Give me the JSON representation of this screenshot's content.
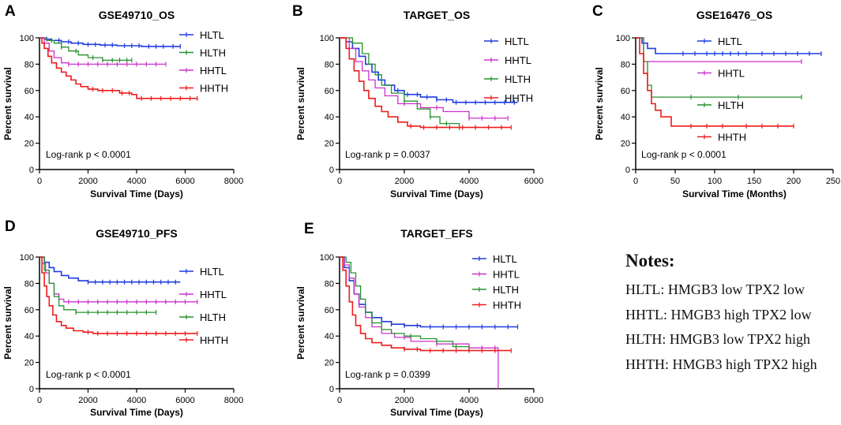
{
  "chart_data": [
    {
      "type": "line",
      "panel_letter": "A",
      "title": "GSE49710_OS",
      "xlabel": "Survival Time (Days)",
      "ylabel": "Percent survival",
      "xlim": [
        0,
        8000
      ],
      "ylim": [
        0,
        100
      ],
      "xticks": [
        0,
        2000,
        4000,
        6000,
        8000
      ],
      "yticks": [
        0,
        20,
        40,
        60,
        80,
        100
      ],
      "annotation": "Log-rank p < 0.0001",
      "legend_order": [
        "HLTL",
        "HLTH",
        "HHTL",
        "HHTH"
      ],
      "series": [
        {
          "name": "HLTL",
          "color": "#1f3de0",
          "x": [
            0,
            200,
            500,
            900,
            1300,
            1800,
            2500,
            3200,
            4200,
            5800
          ],
          "y": [
            100,
            99,
            98,
            97,
            96,
            95,
            94.5,
            94,
            93.5,
            93.5
          ],
          "censor_x": [
            300,
            800,
            1200,
            1600,
            2000,
            2300,
            2700,
            3000,
            3500,
            3800,
            4100,
            4500,
            4800,
            5100,
            5500,
            5800
          ]
        },
        {
          "name": "HLTH",
          "color": "#27922f",
          "x": [
            0,
            300,
            600,
            900,
            1200,
            1600,
            2000,
            2600,
            3800
          ],
          "y": [
            100,
            98,
            96,
            93,
            90,
            87,
            85,
            83,
            83
          ],
          "censor_x": [
            500,
            900,
            1500,
            2200,
            2600,
            3000,
            3300,
            3600,
            3800
          ]
        },
        {
          "name": "HHTL",
          "color": "#cc33cc",
          "x": [
            0,
            200,
            400,
            600,
            900,
            1200,
            2000,
            3000,
            4000,
            5200
          ],
          "y": [
            100,
            96,
            90,
            85,
            81,
            80,
            80,
            80,
            80,
            80
          ],
          "censor_x": [
            1200,
            1600,
            2000,
            2400,
            2800,
            3200,
            3600,
            4000,
            4400,
            4800,
            5200
          ]
        },
        {
          "name": "HHTH",
          "color": "#ee1c1c",
          "x": [
            0,
            100,
            200,
            350,
            500,
            700,
            900,
            1100,
            1300,
            1500,
            1700,
            2000,
            2400,
            2800,
            3300,
            3800,
            4000,
            6500
          ],
          "y": [
            100,
            96,
            92,
            86,
            81,
            77,
            74,
            71,
            68,
            65,
            63,
            61,
            60,
            60,
            58,
            57,
            54,
            54
          ],
          "censor_x": [
            2200,
            2600,
            3000,
            3400,
            3700,
            4200,
            4600,
            5000,
            5400,
            5800,
            6200,
            6500
          ]
        }
      ]
    },
    {
      "type": "line",
      "panel_letter": "B",
      "title": "TARGET_OS",
      "xlabel": "Survival Time (Days)",
      "ylabel": "Percent survival",
      "xlim": [
        0,
        6000
      ],
      "ylim": [
        0,
        100
      ],
      "xticks": [
        0,
        2000,
        4000,
        6000
      ],
      "yticks": [
        0,
        20,
        40,
        60,
        80,
        100
      ],
      "annotation": "Log-rank p = 0.0037",
      "legend_order": [
        "HLTL",
        "HHTL",
        "HLTH",
        "HHTH"
      ],
      "series": [
        {
          "name": "HLTL",
          "color": "#1f3de0",
          "x": [
            0,
            200,
            400,
            600,
            800,
            1000,
            1200,
            1400,
            1700,
            2000,
            2500,
            3000,
            3500,
            5500
          ],
          "y": [
            100,
            97,
            92,
            86,
            80,
            74,
            68,
            64,
            60,
            57,
            55,
            53,
            51,
            51
          ],
          "censor_x": [
            1800,
            2100,
            2400,
            2700,
            3000,
            3300,
            3600,
            3900,
            4200,
            4500,
            4800,
            5100,
            5400
          ]
        },
        {
          "name": "HHTL",
          "color": "#cc33cc",
          "x": [
            0,
            300,
            500,
            700,
            900,
            1100,
            1400,
            1800,
            2500,
            3200,
            4000,
            5200
          ],
          "y": [
            100,
            92,
            82,
            75,
            68,
            62,
            56,
            50,
            47,
            44,
            39,
            39
          ],
          "censor_x": [
            2000,
            3000,
            4000,
            4400,
            4800,
            5200
          ]
        },
        {
          "name": "HLTH",
          "color": "#27922f",
          "x": [
            0,
            400,
            700,
            900,
            1100,
            1300,
            1600,
            2000,
            2400,
            2800,
            3100,
            3700
          ],
          "y": [
            100,
            96,
            88,
            80,
            72,
            64,
            58,
            52,
            46,
            40,
            35,
            30
          ],
          "censor_x": [
            2000,
            2800,
            3300
          ]
        },
        {
          "name": "HHTH",
          "color": "#ee1c1c",
          "x": [
            0,
            200,
            300,
            450,
            600,
            750,
            900,
            1100,
            1300,
            1500,
            1800,
            2100,
            2500,
            5300
          ],
          "y": [
            100,
            92,
            84,
            75,
            67,
            60,
            54,
            48,
            44,
            40,
            36,
            33,
            32,
            32
          ],
          "censor_x": [
            2200,
            2600,
            3000,
            3400,
            3800,
            4200,
            4600,
            5000,
            5300
          ]
        }
      ]
    },
    {
      "type": "line",
      "panel_letter": "C",
      "title": "GSE16476_OS",
      "xlabel": "Survival Time (Months)",
      "ylabel": "Percent survival",
      "xlim": [
        0,
        250
      ],
      "ylim": [
        0,
        100
      ],
      "xticks": [
        0,
        50,
        100,
        150,
        200,
        250
      ],
      "yticks": [
        0,
        20,
        40,
        60,
        80,
        100
      ],
      "annotation": "Log-rank p < 0.0001",
      "legend_order": [
        "HLTL",
        "HHTL",
        "HLTH",
        "HHTH"
      ],
      "series": [
        {
          "name": "HLTL",
          "color": "#1f3de0",
          "x": [
            0,
            8,
            15,
            25,
            235
          ],
          "y": [
            100,
            96,
            92,
            88,
            88
          ],
          "censor_x": [
            60,
            75,
            90,
            100,
            110,
            120,
            130,
            140,
            160,
            175,
            190,
            205,
            220,
            235
          ]
        },
        {
          "name": "HHTL",
          "color": "#cc33cc",
          "x": [
            0,
            10,
            210
          ],
          "y": [
            100,
            82,
            82
          ],
          "censor_x": [
            210
          ]
        },
        {
          "name": "HLTH",
          "color": "#27922f",
          "x": [
            0,
            10,
            15,
            20,
            210
          ],
          "y": [
            100,
            82,
            64,
            55,
            55
          ],
          "censor_x": [
            70,
            130,
            210
          ]
        },
        {
          "name": "HHTH",
          "color": "#ee1c1c",
          "x": [
            0,
            5,
            10,
            15,
            20,
            25,
            32,
            45,
            200
          ],
          "y": [
            100,
            88,
            73,
            60,
            50,
            45,
            40,
            33,
            33
          ],
          "censor_x": [
            70,
            90,
            110,
            140,
            160,
            180,
            200
          ]
        }
      ]
    },
    {
      "type": "line",
      "panel_letter": "D",
      "title": "GSE49710_PFS",
      "xlabel": "Survival Time (Days)",
      "ylabel": "Percent survival",
      "xlim": [
        0,
        8000
      ],
      "ylim": [
        0,
        100
      ],
      "xticks": [
        0,
        2000,
        4000,
        6000,
        8000
      ],
      "yticks": [
        0,
        20,
        40,
        60,
        80,
        100
      ],
      "annotation": "Log-rank p < 0.0001",
      "legend_order": [
        "HLTL",
        "HHTL",
        "HLTH",
        "HHTH"
      ],
      "series": [
        {
          "name": "HLTL",
          "color": "#1f3de0",
          "x": [
            0,
            200,
            400,
            600,
            900,
            1200,
            1600,
            2000,
            5800
          ],
          "y": [
            100,
            96,
            92,
            89,
            86,
            84,
            82,
            81,
            81
          ],
          "censor_x": [
            2000,
            2300,
            2600,
            2900,
            3200,
            3500,
            3800,
            4100,
            4400,
            4700,
            5000,
            5300,
            5600
          ]
        },
        {
          "name": "HHTL",
          "color": "#cc33cc",
          "x": [
            0,
            100,
            250,
            400,
            600,
            800,
            1000,
            6500
          ],
          "y": [
            100,
            95,
            88,
            80,
            72,
            68,
            66,
            66
          ],
          "censor_x": [
            1200,
            1600,
            2000,
            2400,
            2800,
            3200,
            3600,
            4000,
            4400,
            4800,
            5200,
            5600,
            6000,
            6500
          ]
        },
        {
          "name": "HLTH",
          "color": "#27922f",
          "x": [
            0,
            200,
            400,
            600,
            800,
            1000,
            1500,
            4800
          ],
          "y": [
            100,
            90,
            80,
            70,
            63,
            60,
            58,
            58
          ],
          "censor_x": [
            1500,
            2000,
            2400,
            2800,
            3200,
            3600,
            4000,
            4400,
            4800
          ]
        },
        {
          "name": "HHTH",
          "color": "#ee1c1c",
          "x": [
            0,
            100,
            200,
            300,
            400,
            550,
            700,
            900,
            1100,
            1400,
            1800,
            2200,
            6500
          ],
          "y": [
            100,
            88,
            78,
            70,
            63,
            56,
            51,
            48,
            46,
            44,
            43,
            42,
            42
          ],
          "censor_x": [
            2000,
            2400,
            2800,
            3200,
            3600,
            4000,
            4400,
            4800,
            5200,
            5600,
            6000,
            6500
          ]
        }
      ]
    },
    {
      "type": "line",
      "panel_letter": "E",
      "title": "TARGET_EFS",
      "xlabel": "Survival Time (Days)",
      "ylabel": "Percent survival",
      "xlim": [
        0,
        6000
      ],
      "ylim": [
        0,
        100
      ],
      "xticks": [
        0,
        2000,
        4000,
        6000
      ],
      "yticks": [
        0,
        20,
        40,
        60,
        80,
        100
      ],
      "annotation": "Log-rank p = 0.0399",
      "legend_order": [
        "HLTL",
        "HHTL",
        "HLTH",
        "HHTH"
      ],
      "series": [
        {
          "name": "HLTL",
          "color": "#1f3de0",
          "x": [
            0,
            150,
            300,
            450,
            600,
            800,
            1000,
            1300,
            1600,
            2000,
            2500,
            3000,
            5500
          ],
          "y": [
            100,
            92,
            82,
            72,
            64,
            58,
            54,
            51,
            49,
            48,
            47,
            47,
            47
          ],
          "censor_x": [
            1600,
            2000,
            2400,
            2800,
            3200,
            3600,
            4000,
            4400,
            4800,
            5200,
            5500
          ]
        },
        {
          "name": "HHTL",
          "color": "#cc33cc",
          "x": [
            0,
            150,
            300,
            450,
            600,
            800,
            1000,
            1300,
            1700,
            2200,
            3000,
            4000,
            4900,
            4900
          ],
          "y": [
            100,
            94,
            84,
            72,
            62,
            54,
            47,
            42,
            39,
            36,
            34,
            31,
            29,
            0
          ],
          "censor_x": [
            2000,
            3000,
            4000,
            4400,
            4800
          ]
        },
        {
          "name": "HLTH",
          "color": "#27922f",
          "x": [
            0,
            200,
            350,
            500,
            650,
            800,
            1000,
            1300,
            1600,
            2000,
            2500,
            3000,
            3500,
            4000
          ],
          "y": [
            100,
            96,
            88,
            78,
            68,
            58,
            50,
            45,
            42,
            40,
            38,
            36,
            32,
            29
          ],
          "censor_x": [
            2200,
            3000,
            3600
          ]
        },
        {
          "name": "HHTH",
          "color": "#ee1c1c",
          "x": [
            0,
            100,
            200,
            300,
            400,
            500,
            650,
            800,
            1000,
            1300,
            1600,
            2000,
            2500,
            5300
          ],
          "y": [
            100,
            90,
            78,
            66,
            56,
            48,
            42,
            38,
            35,
            33,
            31,
            30,
            29,
            29
          ],
          "censor_x": [
            2000,
            2400,
            2800,
            3200,
            3600,
            4000,
            4400,
            4800,
            5300
          ]
        }
      ]
    }
  ],
  "notes": {
    "title": "Notes:",
    "lines": [
      "HLTL: HMGB3 low TPX2 low",
      "HHTL: HMGB3 high TPX2 low",
      "HLTH: HMGB3 low TPX2 high",
      "HHTH: HMGB3 high TPX2 high"
    ]
  }
}
